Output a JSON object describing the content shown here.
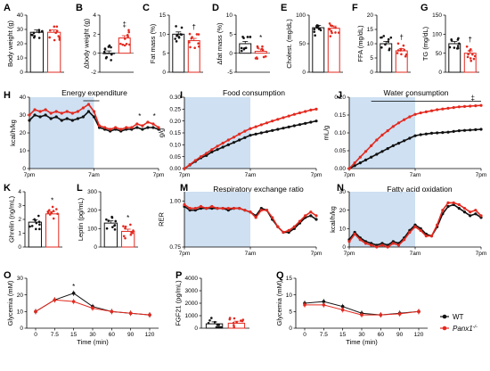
{
  "colors": {
    "wt": "#111111",
    "ko": "#e3291f",
    "dark_shade": "#c6daf0",
    "bar_fill": "#ffffff"
  },
  "legend": {
    "wt": "WT",
    "ko": "Panx1",
    "ko_sup": "-/-"
  },
  "chart_data": [
    {
      "id": "A",
      "letter": "A",
      "type": "bar",
      "ylabel": "Body weight (g)",
      "ylim": [
        0,
        40
      ],
      "yticks": [
        "0",
        "10",
        "20",
        "30",
        "40"
      ],
      "categories": [
        "WT",
        "Panx1-/-"
      ],
      "values": [
        28,
        28
      ],
      "annotation": ""
    },
    {
      "id": "B",
      "letter": "B",
      "type": "bar",
      "ylabel": "Δbody weight (g)",
      "ylim": [
        -2,
        4
      ],
      "yticks": [
        "-2",
        "0",
        "2",
        "4"
      ],
      "categories": [
        "WT",
        "Panx1-/-"
      ],
      "values": [
        0,
        1.6
      ],
      "annotation": "‡"
    },
    {
      "id": "C",
      "letter": "C",
      "type": "bar",
      "ylabel": "Fat mass (%)",
      "ylim": [
        0,
        15
      ],
      "yticks": [
        "0",
        "5",
        "10",
        "15"
      ],
      "categories": [
        "WT",
        "Panx1-/-"
      ],
      "values": [
        10,
        8.3
      ],
      "annotation": "†"
    },
    {
      "id": "D",
      "letter": "D",
      "type": "bar",
      "ylabel": "Δfat mass (%)",
      "ylim": [
        -5,
        10
      ],
      "yticks": [
        "-5",
        "0",
        "5",
        "10"
      ],
      "categories": [
        "WT",
        "Panx1-/-"
      ],
      "values": [
        2.5,
        0.5
      ],
      "annotation": "*"
    },
    {
      "id": "E",
      "letter": "E",
      "type": "bar",
      "ylabel": "Cholest. (mg/dL)",
      "ylim": [
        0,
        100
      ],
      "yticks": [
        "0",
        "50",
        "100"
      ],
      "categories": [
        "WT",
        "Panx1-/-"
      ],
      "values": [
        78,
        77
      ],
      "annotation": ""
    },
    {
      "id": "F",
      "letter": "F",
      "type": "bar",
      "ylabel": "FFA (mg/dL)",
      "ylim": [
        0,
        20
      ],
      "yticks": [
        "0",
        "5",
        "10",
        "15",
        "20"
      ],
      "categories": [
        "WT",
        "Panx1-/-"
      ],
      "values": [
        10,
        7.5
      ],
      "annotation": "†"
    },
    {
      "id": "G",
      "letter": "G",
      "type": "bar",
      "ylabel": "TG (mg/dL)",
      "ylim": [
        0,
        150
      ],
      "yticks": [
        "0",
        "50",
        "100",
        "150"
      ],
      "categories": [
        "WT",
        "Panx1-/-"
      ],
      "values": [
        75,
        50
      ],
      "annotation": "†"
    },
    {
      "id": "H",
      "letter": "H",
      "type": "line",
      "title": "Energy expenditure",
      "ylabel": "kcal/h/kg",
      "ylim": [
        0,
        40
      ],
      "yticks": [
        "0",
        "10",
        "20",
        "30",
        "40"
      ],
      "xticks": [
        "7pm",
        "7am",
        "7pm"
      ],
      "dark_period": [
        0,
        12
      ],
      "xlim": [
        0,
        24
      ],
      "annotations": [
        "*",
        "*"
      ],
      "series": [
        {
          "name": "WT",
          "x": [
            0,
            1,
            2,
            3,
            4,
            5,
            6,
            7,
            8,
            9,
            10,
            11,
            12,
            13,
            14,
            15,
            16,
            17,
            18,
            19,
            20,
            21,
            22,
            23,
            24
          ],
          "y": [
            27,
            30,
            29,
            30,
            28,
            29,
            27,
            28,
            27,
            28,
            29,
            32,
            29,
            23,
            22,
            21,
            22,
            21,
            22,
            22,
            23,
            22,
            23,
            23,
            22
          ]
        },
        {
          "name": "Panx1-/-",
          "x": [
            0,
            1,
            2,
            3,
            4,
            5,
            6,
            7,
            8,
            9,
            10,
            11,
            12,
            13,
            14,
            15,
            16,
            17,
            18,
            19,
            20,
            21,
            22,
            23,
            24
          ],
          "y": [
            30,
            33,
            32,
            33,
            31,
            32,
            31,
            32,
            31,
            32,
            34,
            36,
            32,
            24,
            23,
            22,
            23,
            22,
            23,
            23,
            25,
            24,
            26,
            25,
            23
          ]
        }
      ]
    },
    {
      "id": "I",
      "letter": "I",
      "type": "line",
      "title": "Food consumption",
      "ylabel": "g/g",
      "ylim": [
        0,
        0.3
      ],
      "yticks": [
        "0.00",
        "0.05",
        "0.10",
        "0.15",
        "0.20",
        "0.25",
        "0.30"
      ],
      "xticks": [
        "7pm",
        "7am",
        "7pm"
      ],
      "dark_period": [
        0,
        12
      ],
      "xlim": [
        0,
        24
      ],
      "series": [
        {
          "name": "WT",
          "x": [
            0,
            1,
            2,
            3,
            4,
            5,
            6,
            7,
            8,
            9,
            10,
            11,
            12,
            13,
            14,
            15,
            16,
            17,
            18,
            19,
            20,
            21,
            22,
            23,
            24
          ],
          "y": [
            0,
            0.015,
            0.03,
            0.045,
            0.055,
            0.07,
            0.08,
            0.09,
            0.1,
            0.11,
            0.12,
            0.13,
            0.14,
            0.145,
            0.15,
            0.155,
            0.16,
            0.165,
            0.17,
            0.175,
            0.18,
            0.185,
            0.19,
            0.195,
            0.2
          ]
        },
        {
          "name": "Panx1-/-",
          "x": [
            0,
            1,
            2,
            3,
            4,
            5,
            6,
            7,
            8,
            9,
            10,
            11,
            12,
            13,
            14,
            15,
            16,
            17,
            18,
            19,
            20,
            21,
            22,
            23,
            24
          ],
          "y": [
            0,
            0.017,
            0.034,
            0.05,
            0.064,
            0.08,
            0.094,
            0.107,
            0.12,
            0.132,
            0.145,
            0.157,
            0.168,
            0.176,
            0.184,
            0.192,
            0.2,
            0.207,
            0.214,
            0.221,
            0.228,
            0.234,
            0.24,
            0.246,
            0.25
          ]
        }
      ]
    },
    {
      "id": "J",
      "letter": "J",
      "type": "line",
      "title": "Water consumption",
      "ylabel": "mL/g",
      "ylim": [
        0,
        0.2
      ],
      "yticks": [
        "0.00",
        "0.05",
        "0.10",
        "0.15",
        "0.20"
      ],
      "xticks": [
        "7pm",
        "7am",
        "7pm"
      ],
      "dark_period": [
        0,
        12
      ],
      "xlim": [
        0,
        24
      ],
      "annotations": [
        "*",
        "‡"
      ],
      "series": [
        {
          "name": "WT",
          "x": [
            0,
            1,
            2,
            3,
            4,
            5,
            6,
            7,
            8,
            9,
            10,
            11,
            12,
            13,
            14,
            15,
            16,
            17,
            18,
            19,
            20,
            21,
            22,
            23,
            24
          ],
          "y": [
            0,
            0.008,
            0.016,
            0.024,
            0.032,
            0.04,
            0.048,
            0.056,
            0.064,
            0.071,
            0.078,
            0.085,
            0.092,
            0.095,
            0.097,
            0.099,
            0.1,
            0.101,
            0.102,
            0.104,
            0.106,
            0.107,
            0.108,
            0.109,
            0.11
          ]
        },
        {
          "name": "Panx1-/-",
          "x": [
            0,
            1,
            2,
            3,
            4,
            5,
            6,
            7,
            8,
            9,
            10,
            11,
            12,
            13,
            14,
            15,
            16,
            17,
            18,
            19,
            20,
            21,
            22,
            23,
            24
          ],
          "y": [
            0,
            0.016,
            0.032,
            0.048,
            0.064,
            0.08,
            0.094,
            0.106,
            0.118,
            0.128,
            0.137,
            0.145,
            0.152,
            0.156,
            0.159,
            0.162,
            0.165,
            0.167,
            0.169,
            0.171,
            0.173,
            0.174,
            0.175,
            0.176,
            0.177
          ]
        }
      ]
    },
    {
      "id": "K",
      "letter": "K",
      "type": "bar",
      "ylabel": "Ghrelin (ng/mL)",
      "ylim": [
        0,
        4
      ],
      "yticks": [
        "0",
        "1",
        "2",
        "3",
        "4"
      ],
      "categories": [
        "WT",
        "Panx1-/-"
      ],
      "values": [
        1.8,
        2.4
      ],
      "annotation": "*"
    },
    {
      "id": "L",
      "letter": "L",
      "type": "bar",
      "ylabel": "Leptin (pg/mL)",
      "ylim": [
        0,
        300
      ],
      "yticks": [
        "0",
        "100",
        "200",
        "300"
      ],
      "categories": [
        "WT",
        "Panx1-/-"
      ],
      "values": [
        130,
        85
      ],
      "annotation": "*"
    },
    {
      "id": "M",
      "letter": "M",
      "type": "line",
      "title": "Respiratory exchange ratio",
      "ylabel": "RER",
      "ylim": [
        0.75,
        1.05
      ],
      "yticks": [
        "0.75",
        "1.00"
      ],
      "xticks": [
        "7pm",
        "7am",
        "7pm"
      ],
      "dark_period": [
        0,
        12
      ],
      "xlim": [
        0,
        24
      ],
      "series": [
        {
          "name": "WT",
          "x": [
            0,
            1,
            2,
            3,
            4,
            5,
            6,
            7,
            8,
            9,
            10,
            11,
            12,
            13,
            14,
            15,
            16,
            17,
            18,
            19,
            20,
            21,
            22,
            23,
            24
          ],
          "y": [
            0.97,
            0.95,
            0.95,
            0.96,
            0.96,
            0.96,
            0.96,
            0.96,
            0.95,
            0.96,
            0.96,
            0.95,
            0.94,
            0.92,
            0.96,
            0.95,
            0.9,
            0.86,
            0.83,
            0.83,
            0.85,
            0.88,
            0.91,
            0.92,
            0.9
          ]
        },
        {
          "name": "Panx1-/-",
          "x": [
            0,
            1,
            2,
            3,
            4,
            5,
            6,
            7,
            8,
            9,
            10,
            11,
            12,
            13,
            14,
            15,
            16,
            17,
            18,
            19,
            20,
            21,
            22,
            23,
            24
          ],
          "y": [
            0.98,
            0.96,
            0.96,
            0.97,
            0.96,
            0.97,
            0.96,
            0.96,
            0.96,
            0.96,
            0.96,
            0.95,
            0.94,
            0.91,
            0.95,
            0.95,
            0.91,
            0.86,
            0.83,
            0.84,
            0.86,
            0.89,
            0.92,
            0.94,
            0.92
          ]
        }
      ]
    },
    {
      "id": "N",
      "letter": "N",
      "type": "line",
      "title": "Fatty acid oxidation",
      "ylabel": "kcal/h/kg",
      "ylim": [
        0,
        30
      ],
      "yticks": [
        "0",
        "10",
        "20",
        "30"
      ],
      "xticks": [
        "7pm",
        "7am",
        "7pm"
      ],
      "dark_period": [
        0,
        12
      ],
      "xlim": [
        0,
        24
      ],
      "series": [
        {
          "name": "WT",
          "x": [
            0,
            1,
            2,
            3,
            4,
            5,
            6,
            7,
            8,
            9,
            10,
            11,
            12,
            13,
            14,
            15,
            16,
            17,
            18,
            19,
            20,
            21,
            22,
            23,
            24
          ],
          "y": [
            4,
            8,
            5,
            3,
            2,
            1,
            2,
            1,
            3,
            2,
            5,
            9,
            12,
            10,
            7,
            6,
            11,
            18,
            22,
            23,
            21,
            19,
            17,
            18,
            16
          ]
        },
        {
          "name": "Panx1-/-",
          "x": [
            0,
            1,
            2,
            3,
            4,
            5,
            6,
            7,
            8,
            9,
            10,
            11,
            12,
            13,
            14,
            15,
            16,
            17,
            18,
            19,
            20,
            21,
            22,
            23,
            24
          ],
          "y": [
            3,
            7,
            4,
            2,
            1,
            0,
            1,
            0,
            2,
            1,
            4,
            8,
            11,
            9,
            6,
            6,
            12,
            20,
            24,
            24,
            23,
            21,
            19,
            20,
            17
          ]
        }
      ]
    },
    {
      "id": "O",
      "letter": "O",
      "type": "line",
      "xlabel": "Time (min)",
      "ylabel": "Glycemia (mM)",
      "ylim": [
        0,
        30
      ],
      "yticks": [
        "0",
        "10",
        "20",
        "30"
      ],
      "xticks": [
        "0",
        "7.5",
        "15",
        "30",
        "60",
        "90",
        "120"
      ],
      "annotation": "*",
      "series": [
        {
          "name": "WT",
          "x": [
            0,
            7.5,
            15,
            30,
            60,
            90,
            120
          ],
          "y": [
            10,
            17,
            21,
            13,
            10,
            9,
            8
          ]
        },
        {
          "name": "Panx1-/-",
          "x": [
            0,
            7.5,
            15,
            30,
            60,
            90,
            120
          ],
          "y": [
            10,
            17,
            16,
            12,
            10,
            9,
            8
          ]
        }
      ]
    },
    {
      "id": "P",
      "letter": "P",
      "type": "bar",
      "ylabel": "FGF21 (pg/mL)",
      "ylim": [
        0,
        4000
      ],
      "yticks": [
        "0",
        "1000",
        "2000",
        "3000",
        "4000"
      ],
      "categories": [
        "WT",
        "Panx1-/-"
      ],
      "values": [
        350,
        400
      ],
      "annotation": ""
    },
    {
      "id": "Q",
      "letter": "Q",
      "type": "line",
      "xlabel": "Time (min)",
      "ylabel": "Glycemia (mM)",
      "ylim": [
        0,
        15
      ],
      "yticks": [
        "0",
        "5",
        "10",
        "15"
      ],
      "xticks": [
        "0",
        "7.5",
        "15",
        "30",
        "60",
        "90",
        "120"
      ],
      "series": [
        {
          "name": "WT",
          "x": [
            0,
            7.5,
            15,
            30,
            60,
            90,
            120
          ],
          "y": [
            7.5,
            8,
            6.5,
            4.5,
            4,
            4.5,
            5
          ]
        },
        {
          "name": "Panx1-/-",
          "x": [
            0,
            7.5,
            15,
            30,
            60,
            90,
            120
          ],
          "y": [
            7,
            7,
            5.5,
            4,
            4,
            4.3,
            5
          ]
        }
      ]
    }
  ]
}
